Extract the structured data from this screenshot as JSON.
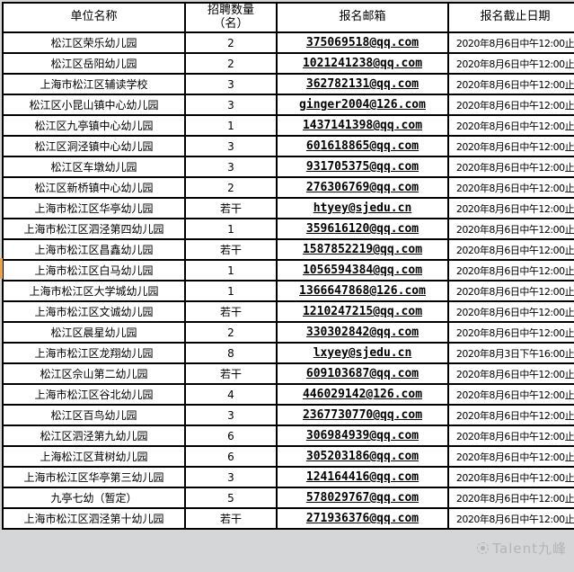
{
  "table": {
    "headers": {
      "unit": "单位名称",
      "count": "招聘数量\n（名）",
      "email": "报名邮箱",
      "deadline": "报名截止日期"
    },
    "rows": [
      {
        "unit": "松江区荣乐幼儿园",
        "count": "2",
        "email": "375069518@qq.com",
        "deadline": "2020年8月6日中午12:00止"
      },
      {
        "unit": "松江区岳阳幼儿园",
        "count": "2",
        "email": "1021241238@qq.com",
        "deadline": "2020年8月6日中午12:00止"
      },
      {
        "unit": "上海市松江区辅读学校",
        "count": "3",
        "email": "362782131@qq.com",
        "deadline": "2020年8月6日中午12:00止"
      },
      {
        "unit": "松江区小昆山镇中心幼儿园",
        "count": "3",
        "email": "ginger2004@126.com",
        "deadline": "2020年8月6日中午12:00止"
      },
      {
        "unit": "松江区九亭镇中心幼儿园",
        "count": "1",
        "email": "1437141398@qq.com",
        "deadline": "2020年8月6日中午12:00止"
      },
      {
        "unit": "松江区洞泾镇中心幼儿园",
        "count": "3",
        "email": "601618865@qq.com",
        "deadline": "2020年8月6日中午12:00止"
      },
      {
        "unit": "松江区车墩幼儿园",
        "count": "3",
        "email": "931705375@qq.com",
        "deadline": "2020年8月6日中午12:00止"
      },
      {
        "unit": "松江区新桥镇中心幼儿园",
        "count": "2",
        "email": "276306769@qq.com",
        "deadline": "2020年8月6日中午12:00止"
      },
      {
        "unit": "上海市松江区华亭幼儿园",
        "count": "若干",
        "email": "htyey@sjedu.cn",
        "deadline": "2020年8月6日中午12:00止"
      },
      {
        "unit": "上海市松江区泗泾第四幼儿园",
        "count": "1",
        "email": "359616120@qq.com",
        "deadline": "2020年8月6日中午12:00止"
      },
      {
        "unit": "上海市松江区昌鑫幼儿园",
        "count": "若干",
        "email": "1587852219@qq.com",
        "deadline": "2020年8月6日中午12:00止"
      },
      {
        "unit": "上海市松江区白马幼儿园",
        "count": "1",
        "email": "1056594384@qq.com",
        "deadline": "2020年8月6日中午12:00止"
      },
      {
        "unit": "上海市松江区大学城幼儿园",
        "count": "1",
        "email": "1366647868@126.com",
        "deadline": "2020年8月6日中午12:00止"
      },
      {
        "unit": "上海市松江区文诚幼儿园",
        "count": "若干",
        "email": "1210247215@qq.com",
        "deadline": "2020年8月6日中午12:00止"
      },
      {
        "unit": "松江区晨星幼儿园",
        "count": "2",
        "email": "330302842@qq.com",
        "deadline": "2020年8月6日中午12:00止"
      },
      {
        "unit": "上海市松江区龙翔幼儿园",
        "count": "8",
        "email": "lxyey@sjedu.cn",
        "deadline": "2020年8月3日下午16:00止"
      },
      {
        "unit": "松江区佘山第二幼儿园",
        "count": "若干",
        "email": "609103687@qq.com",
        "deadline": "2020年8月6日中午12:00止"
      },
      {
        "unit": "上海市松江区谷北幼儿园",
        "count": "4",
        "email": "446029142@126.com",
        "deadline": "2020年8月6日中午12:00止"
      },
      {
        "unit": "松江区百鸟幼儿园",
        "count": "3",
        "email": "2367730770@qq.com",
        "deadline": "2020年8月6日中午12:00止"
      },
      {
        "unit": "松江区泗泾第九幼儿园",
        "count": "6",
        "email": "306984939@qq.com",
        "deadline": "2020年8月6日中午12:00止"
      },
      {
        "unit": "上海松江区茸树幼儿园",
        "count": "6",
        "email": "305203186@qq.com",
        "deadline": "2020年8月6日中午12:00止"
      },
      {
        "unit": "上海市松江区华亭第三幼儿园",
        "count": "3",
        "email": "124164416@qq.com",
        "deadline": "2020年8月6日中午12:00止"
      },
      {
        "unit": "九亭七幼（暂定）",
        "count": "5",
        "email": "578029767@qq.com",
        "deadline": "2020年8月6日中午12:00止"
      },
      {
        "unit": "上海市松江区泗泾第十幼儿园",
        "count": "若干",
        "email": "271936376@qq.com",
        "deadline": "2020年8月6日中午12:00止"
      }
    ]
  },
  "watermark": {
    "text": "Talent九峰"
  },
  "colors": {
    "highlight_marker": "#efa33c",
    "watermark_text": "#9a9a9a",
    "border": "#000000",
    "page_background": "#d4d6d8"
  }
}
